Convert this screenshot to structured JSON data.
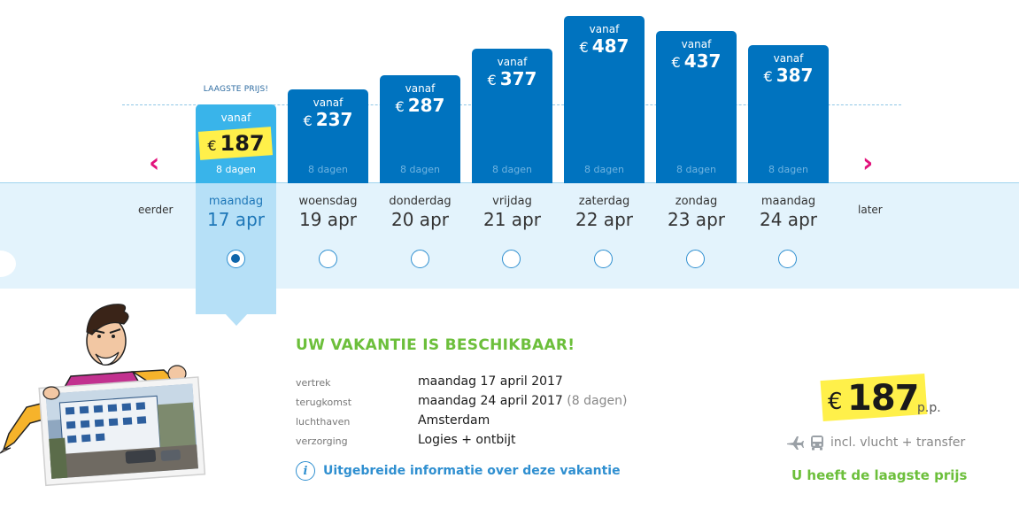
{
  "calendar": {
    "nav_prev_label": "eerder",
    "nav_next_label": "later",
    "lowest_tag": "LAAGSTE PRIJS!",
    "currency": "€",
    "from_label": "vanaf",
    "selected_index": 0,
    "days": [
      {
        "weekday": "maandag",
        "date": "17 apr",
        "price": "187",
        "duration": "8 dagen"
      },
      {
        "weekday": "woensdag",
        "date": "19 apr",
        "price": "237",
        "duration": "8 dagen"
      },
      {
        "weekday": "donderdag",
        "date": "20 apr",
        "price": "287",
        "duration": "8 dagen"
      },
      {
        "weekday": "vrijdag",
        "date": "21 apr",
        "price": "377",
        "duration": "8 dagen"
      },
      {
        "weekday": "zaterdag",
        "date": "22 apr",
        "price": "487",
        "duration": "8 dagen"
      },
      {
        "weekday": "zondag",
        "date": "23 apr",
        "price": "437",
        "duration": "8 dagen"
      },
      {
        "weekday": "maandag",
        "date": "24 apr",
        "price": "387",
        "duration": "8 dagen"
      }
    ]
  },
  "details": {
    "title": "UW VAKANTIE IS BESCHIKBAAR!",
    "rows": [
      {
        "label": "vertrek",
        "value": "maandag 17 april 2017",
        "extra": ""
      },
      {
        "label": "terugkomst",
        "value": "maandag 24 april 2017",
        "extra": "(8 dagen)"
      },
      {
        "label": "luchthaven",
        "value": "Amsterdam",
        "extra": ""
      },
      {
        "label": "verzorging",
        "value": "Logies + ontbijt",
        "extra": ""
      }
    ],
    "info_link": "Uitgebreide informatie over deze vakantie"
  },
  "summary": {
    "currency": "€",
    "price": "187",
    "per_person": "p.p.",
    "includes": "incl. vlucht + transfer",
    "lowest_message": "U heeft de laagste prijs"
  },
  "colors": {
    "bar_blue": "#0073bf",
    "selected_blue": "#39b4ea",
    "highlight_yellow": "#fff04a",
    "accent_green": "#6cbf3b",
    "arrow_pink": "#e2137c"
  },
  "icons": {
    "prev": "chevron-left-icon",
    "next": "chevron-right-icon",
    "info": "info-icon",
    "plane": "plane-icon",
    "bus": "bus-icon"
  }
}
